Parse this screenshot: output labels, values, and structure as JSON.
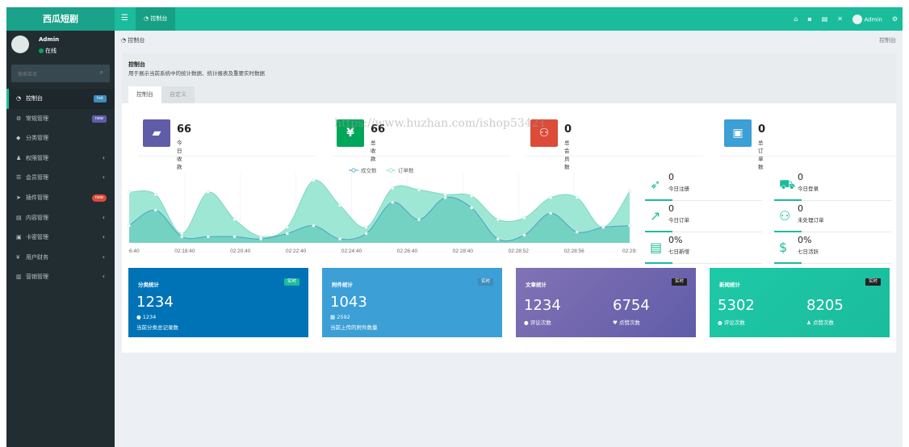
{
  "app": {
    "logo": "西瓜短剧"
  },
  "topbar": {
    "home_tab": "控制台",
    "user": "Admin"
  },
  "sidebar": {
    "user": {
      "name": "Admin",
      "status": "在线"
    },
    "search": {
      "placeholder": "搜索菜单"
    },
    "items": [
      {
        "label": "控制台",
        "badge": "hot",
        "badge_color": "#3c8dbc"
      },
      {
        "label": "常规管理",
        "badge": "new",
        "badge_color": "#605ca8"
      },
      {
        "label": "分类管理"
      },
      {
        "label": "权限管理"
      },
      {
        "label": "会员管理"
      },
      {
        "label": "插件管理",
        "badge": "new",
        "badge_color": "#dd4b39"
      },
      {
        "label": "内容管理"
      },
      {
        "label": "卡密管理"
      },
      {
        "label": "用户财务"
      },
      {
        "label": "营销管理"
      }
    ]
  },
  "breadcrumb": {
    "left": "控制台",
    "right": "控制台"
  },
  "panel": {
    "title": "控制台",
    "desc": "用于展示当前系统中的统计数据、统计报表及重要实时数据",
    "tabs": [
      "控制台",
      "自定义"
    ]
  },
  "watermark": "https://www.huzhan.com/ishop53421",
  "stats": [
    {
      "value": "66",
      "label": "今日收款",
      "color": "#605ca8",
      "icon": "book-icon"
    },
    {
      "value": "66",
      "label": "总收款",
      "color": "#00a65a",
      "icon": "yen-icon"
    },
    {
      "value": "0",
      "label": "总会员数",
      "color": "#dd4b39",
      "icon": "users-icon"
    },
    {
      "value": "0",
      "label": "总订单数",
      "color": "#3c9fd5",
      "icon": "bag-icon"
    }
  ],
  "chart_data": {
    "type": "area",
    "legend": [
      "成交数",
      "订单数"
    ],
    "x_ticks": [
      "6:40",
      "02:18:40",
      "02:20:40",
      "02:22:40",
      "02:24:40",
      "02:26:40",
      "02:28:40",
      "02:28:52",
      "02:28:56",
      "02:29:"
    ],
    "series": [
      {
        "name": "订单数",
        "color": "#8ee3ce",
        "values": [
          65,
          62,
          12,
          65,
          30,
          8,
          20,
          80,
          48,
          20,
          70,
          68,
          62,
          60,
          30,
          32,
          58,
          58,
          20,
          66
        ]
      },
      {
        "name": "成交数",
        "color": "#6fcfc1",
        "values": [
          22,
          42,
          8,
          8,
          8,
          5,
          12,
          22,
          5,
          12,
          52,
          30,
          58,
          45,
          5,
          10,
          38,
          14,
          20,
          22
        ]
      }
    ]
  },
  "mini_stats": [
    {
      "value": "0",
      "label": "今日注册",
      "icon": "rocket-icon",
      "color": "#1abc9c"
    },
    {
      "value": "0",
      "label": "今日登录",
      "icon": "cart-icon",
      "color": "#1abc9c"
    },
    {
      "value": "0",
      "label": "今日订单",
      "icon": "line-chart-icon",
      "color": "#1abc9c"
    },
    {
      "value": "0",
      "label": "未处理订单",
      "icon": "users-icon",
      "color": "#1abc9c"
    },
    {
      "value": "0%",
      "label": "七日新增",
      "icon": "list-icon",
      "color": "#1abc9c"
    },
    {
      "value": "0%",
      "label": "七日活跃",
      "icon": "dollar-icon",
      "color": "#1abc9c"
    }
  ],
  "cards": [
    {
      "title": "分类统计",
      "tag": "实时",
      "big": "1234",
      "sub1": "1234",
      "sub2": "当前分类总记录数",
      "color": "#0073b7"
    },
    {
      "title": "附件统计",
      "tag": "实时",
      "big": "1043",
      "sub1": "2592",
      "sub2": "当前上传的附件数量",
      "color": "#3c9fd5"
    },
    {
      "title": "文章统计",
      "tag": "实时",
      "big": "1234",
      "big2": "6754",
      "sub1": "评论次数",
      "sub2": "点赞次数",
      "color": "#605ca8"
    },
    {
      "title": "新闻统计",
      "tag": "实时",
      "big": "5302",
      "big2": "8205",
      "sub1": "评论次数",
      "sub2": "点赞次数",
      "color": "#1abc9c"
    }
  ]
}
